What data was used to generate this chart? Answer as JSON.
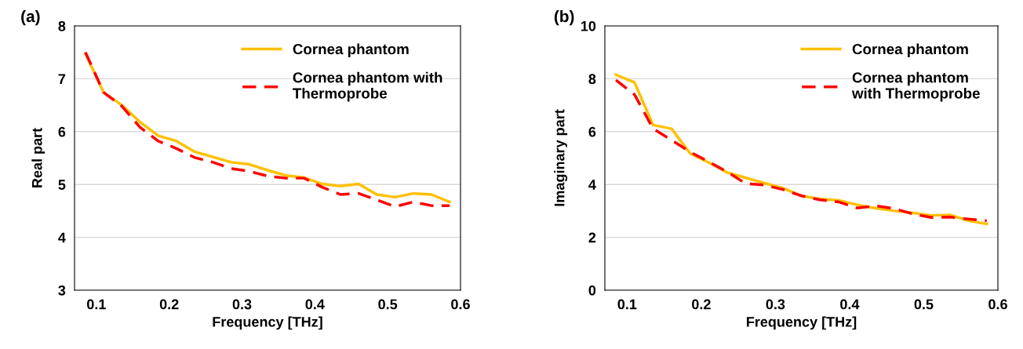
{
  "chart_data": [
    {
      "type": "line",
      "title": "(a)",
      "xlabel": "Frequency [THz]",
      "ylabel": "Real part",
      "x": [
        0.085,
        0.11,
        0.135,
        0.16,
        0.185,
        0.21,
        0.235,
        0.26,
        0.285,
        0.31,
        0.335,
        0.36,
        0.385,
        0.41,
        0.435,
        0.46,
        0.485,
        0.51,
        0.535,
        0.56,
        0.585
      ],
      "series": [
        {
          "name": "Cornea phantom",
          "color": "#ffc000",
          "line_style": "solid",
          "values": [
            7.48,
            6.74,
            6.5,
            6.18,
            5.92,
            5.82,
            5.62,
            5.52,
            5.42,
            5.38,
            5.27,
            5.17,
            5.13,
            5.01,
            4.97,
            5.01,
            4.81,
            4.76,
            4.83,
            4.81,
            4.67
          ]
        },
        {
          "name": "Cornea phantom with\nThermoprobe",
          "color": "#ff0000",
          "line_style": "dashed",
          "values": [
            7.5,
            6.74,
            6.48,
            6.08,
            5.82,
            5.68,
            5.51,
            5.42,
            5.3,
            5.25,
            5.16,
            5.12,
            5.12,
            4.95,
            4.81,
            4.83,
            4.71,
            4.58,
            4.67,
            4.6,
            4.6
          ]
        }
      ],
      "xlim": [
        0.07,
        0.6
      ],
      "xticks": [
        0.1,
        0.2,
        0.3,
        0.4,
        0.5,
        0.6
      ],
      "ylim": [
        3,
        8
      ],
      "yticks": [
        3,
        4,
        5,
        6,
        7,
        8
      ],
      "grid": "y",
      "legend": "top right",
      "marker": "none"
    },
    {
      "type": "line",
      "title": "(b)",
      "xlabel": "Frequency [THz]",
      "ylabel": "Imaginary part",
      "x": [
        0.085,
        0.11,
        0.135,
        0.16,
        0.185,
        0.21,
        0.235,
        0.26,
        0.285,
        0.31,
        0.335,
        0.36,
        0.385,
        0.41,
        0.435,
        0.46,
        0.485,
        0.51,
        0.535,
        0.56,
        0.585
      ],
      "series": [
        {
          "name": "Cornea phantom",
          "color": "#ffc000",
          "line_style": "solid",
          "values": [
            8.15,
            7.86,
            6.25,
            6.11,
            5.17,
            4.83,
            4.45,
            4.25,
            4.05,
            3.86,
            3.57,
            3.45,
            3.4,
            3.23,
            3.1,
            3.0,
            2.92,
            2.83,
            2.85,
            2.63,
            2.51
          ]
        },
        {
          "name": "Cornea phantom\nwith Thermoprobe",
          "color": "#ff0000",
          "line_style": "dashed",
          "values": [
            7.95,
            7.4,
            6.11,
            5.68,
            5.23,
            4.86,
            4.48,
            4.03,
            3.98,
            3.81,
            3.57,
            3.42,
            3.34,
            3.11,
            3.19,
            3.09,
            2.89,
            2.75,
            2.77,
            2.69,
            2.63
          ]
        }
      ],
      "xlim": [
        0.07,
        0.6
      ],
      "xticks": [
        0.1,
        0.2,
        0.3,
        0.4,
        0.5,
        0.6
      ],
      "ylim": [
        0,
        10
      ],
      "yticks": [
        0,
        2,
        4,
        6,
        8,
        10
      ],
      "grid": "y",
      "legend": "top right",
      "marker": "none"
    }
  ]
}
